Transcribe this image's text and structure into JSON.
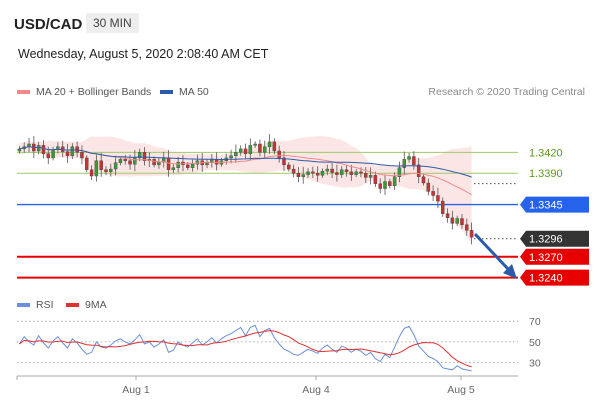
{
  "header": {
    "symbol": "USD/CAD",
    "timeframe": "30 MIN",
    "datetime": "Wednesday, August 5, 2020 2:08:40 AM CET"
  },
  "legend": {
    "bollinger_label": "MA 20 + Bollinger Bands",
    "ma50_label": "MA 50",
    "rsi_label": "RSI",
    "rsi_ma_label": "9MA"
  },
  "credit": "Research © 2020 Trading Central",
  "colors": {
    "bollinger": "#f08a8a",
    "ma50": "#2b5aa8",
    "resistance": "#9dc96a",
    "pivot": "#2563eb",
    "support": "#e60000",
    "current": "#333333",
    "arrow": "#2b5aa8",
    "candle_up": "#3a9a3a",
    "candle_down": "#c83232",
    "rsi": "#6a8fdc",
    "rsi_ma": "#e03030"
  },
  "chart_data": {
    "type": "candlestick",
    "x_ticks": [
      "Aug 1",
      "Aug 4",
      "Aug 5"
    ],
    "ylim": [
      1.3218,
      1.3488
    ],
    "levels": [
      {
        "label": "1.3420",
        "value": 1.342,
        "kind": "resistance"
      },
      {
        "label": "1.3390",
        "value": 1.339,
        "kind": "resistance"
      },
      {
        "label": "1.3345",
        "value": 1.3345,
        "kind": "pivot"
      },
      {
        "label": "1.3296",
        "value": 1.3296,
        "kind": "current"
      },
      {
        "label": "1.3270",
        "value": 1.327,
        "kind": "support"
      },
      {
        "label": "1.3240",
        "value": 1.324,
        "kind": "support"
      }
    ],
    "close": [
      1.3425,
      1.3428,
      1.3432,
      1.3422,
      1.343,
      1.3418,
      1.3412,
      1.3424,
      1.3428,
      1.3421,
      1.3415,
      1.3428,
      1.342,
      1.3412,
      1.3395,
      1.3386,
      1.3408,
      1.3395,
      1.3392,
      1.3396,
      1.3405,
      1.341,
      1.3408,
      1.3403,
      1.3412,
      1.342,
      1.3408,
      1.341,
      1.3402,
      1.3406,
      1.3412,
      1.3395,
      1.3398,
      1.3406,
      1.3402,
      1.3398,
      1.3403,
      1.3408,
      1.3402,
      1.3405,
      1.341,
      1.3403,
      1.3408,
      1.3412,
      1.3415,
      1.342,
      1.3425,
      1.3418,
      1.343,
      1.3432,
      1.342,
      1.3428,
      1.3435,
      1.3422,
      1.3412,
      1.3402,
      1.3396,
      1.339,
      1.3385,
      1.3388,
      1.3392,
      1.339,
      1.3387,
      1.3393,
      1.3396,
      1.3391,
      1.3388,
      1.3395,
      1.3392,
      1.3388,
      1.3392,
      1.339,
      1.3384,
      1.3387,
      1.3375,
      1.3368,
      1.3378,
      1.3372,
      1.3385,
      1.3398,
      1.341,
      1.3414,
      1.3402,
      1.3385,
      1.3376,
      1.3364,
      1.3358,
      1.335,
      1.3332,
      1.3326,
      1.3318,
      1.3325,
      1.3316,
      1.3308,
      1.3298
    ],
    "rsi": [
      48,
      55,
      50,
      47,
      56,
      49,
      44,
      51,
      55,
      49,
      44,
      53,
      49,
      43,
      38,
      40,
      50,
      45,
      44,
      47,
      51,
      53,
      50,
      48,
      52,
      57,
      48,
      50,
      45,
      48,
      52,
      40,
      42,
      50,
      47,
      45,
      49,
      53,
      47,
      50,
      54,
      49,
      53,
      56,
      58,
      61,
      64,
      56,
      64,
      66,
      55,
      61,
      63,
      54,
      48,
      43,
      41,
      38,
      37,
      40,
      43,
      41,
      39,
      44,
      47,
      43,
      40,
      46,
      44,
      40,
      43,
      41,
      37,
      40,
      34,
      31,
      38,
      35,
      45,
      55,
      63,
      65,
      57,
      46,
      41,
      36,
      34,
      31,
      25,
      24,
      23,
      27,
      24,
      23,
      22
    ],
    "rsi_ticks": [
      70,
      50,
      30
    ]
  }
}
